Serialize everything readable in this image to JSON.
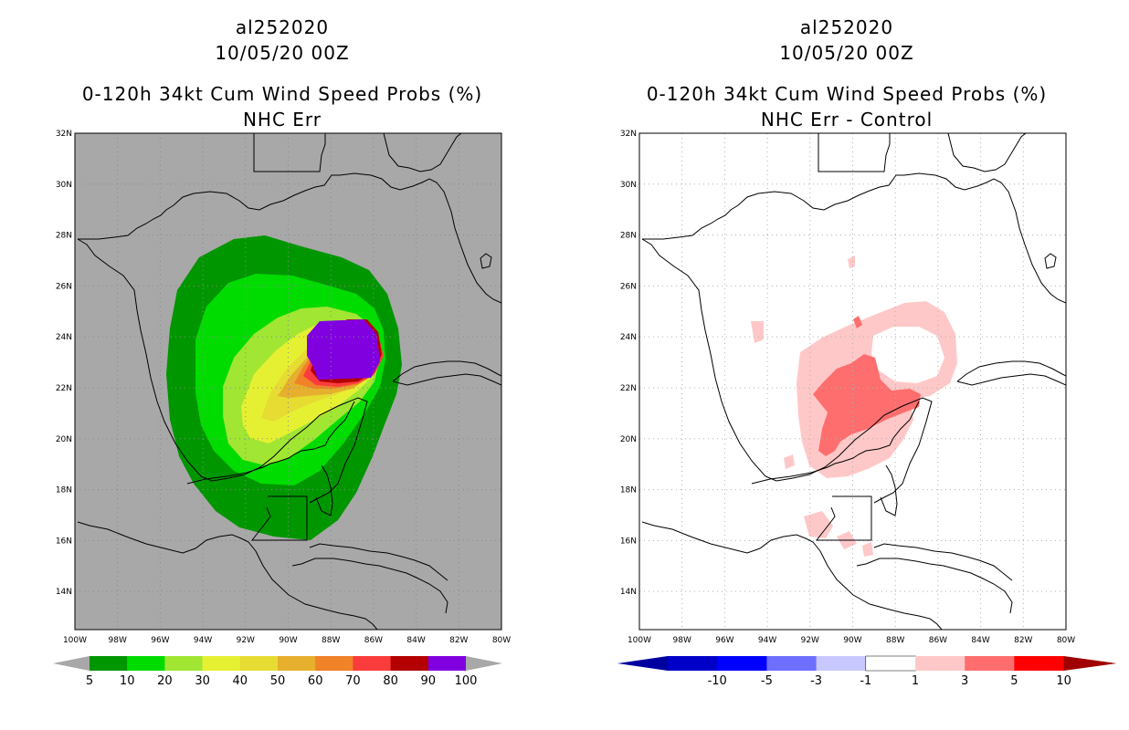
{
  "panels": [
    {
      "storm_id": "al252020",
      "datetime": "10/05/20 00Z",
      "title": "0-120h 34kt Cum Wind Speed Probs (%)",
      "subtitle": "NHC Err",
      "map_background": "#a8a8a8",
      "colorbar": {
        "labels": [
          "5",
          "10",
          "20",
          "30",
          "40",
          "50",
          "60",
          "70",
          "80",
          "90",
          "100"
        ],
        "colors": [
          "#009600",
          "#00dc00",
          "#a0e632",
          "#e6f032",
          "#e6dc32",
          "#e6af2d",
          "#f08228",
          "#fa3c3c",
          "#b40000",
          "#8000e0"
        ],
        "end_color": "#a8a8a8"
      }
    },
    {
      "storm_id": "al252020",
      "datetime": "10/05/20 00Z",
      "title": "0-120h 34kt Cum Wind Speed Probs (%)",
      "subtitle": "NHC Err - Control",
      "map_background": "#ffffff",
      "colorbar": {
        "labels": [
          "-10",
          "-5",
          "-3",
          "-1",
          "1",
          "3",
          "5",
          "10"
        ],
        "colors": [
          "#0000c8",
          "#0000ff",
          "#6e6eff",
          "#c8c8ff",
          "#ffffff",
          "#ffc8c8",
          "#ff6e6e",
          "#ff0000"
        ],
        "left_end": "#0000a0",
        "right_end": "#a00000"
      }
    }
  ],
  "axes": {
    "lon_labels": [
      "100W",
      "98W",
      "96W",
      "94W",
      "92W",
      "90W",
      "88W",
      "86W",
      "84W",
      "82W",
      "80W"
    ],
    "lat_labels": [
      "14N",
      "16N",
      "18N",
      "20N",
      "22N",
      "24N",
      "26N",
      "28N",
      "30N",
      "32N"
    ],
    "lon_range": [
      -100,
      -80
    ],
    "lat_range": [
      12.5,
      32
    ]
  }
}
